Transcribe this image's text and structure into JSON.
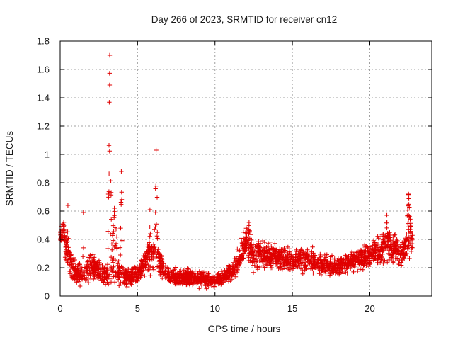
{
  "chart_data": {
    "type": "scatter",
    "title": "Day 266 of 2023, SRMTID for receiver cn12",
    "xlabel": "GPS time / hours",
    "ylabel": "SRMTID / TECUs",
    "xlim": [
      0,
      24
    ],
    "ylim": [
      0,
      1.8
    ],
    "xticks": [
      "0",
      "5",
      "10",
      "15",
      "20"
    ],
    "xtick_values": [
      0,
      5,
      10,
      15,
      20
    ],
    "yticks": [
      "0",
      "0.2",
      "0.4",
      "0.6",
      "0.8",
      "1",
      "1.2",
      "1.4",
      "1.6",
      "1.8"
    ],
    "ytick_values": [
      0,
      0.2,
      0.4,
      0.6,
      0.8,
      1.0,
      1.2,
      1.4,
      1.6,
      1.8
    ],
    "grid": true,
    "marker": "plus",
    "color": "#e00000",
    "series": [
      {
        "name": "SRMTID cn12",
        "profile": [
          {
            "x": 0.0,
            "y": 0.4,
            "spread": 0.05
          },
          {
            "x": 0.2,
            "y": 0.48,
            "spread": 0.06
          },
          {
            "x": 0.4,
            "y": 0.3,
            "spread": 0.1
          },
          {
            "x": 0.6,
            "y": 0.24,
            "spread": 0.09
          },
          {
            "x": 1.0,
            "y": 0.18,
            "spread": 0.07
          },
          {
            "x": 1.5,
            "y": 0.13,
            "spread": 0.06
          },
          {
            "x": 2.0,
            "y": 0.22,
            "spread": 0.08
          },
          {
            "x": 2.5,
            "y": 0.17,
            "spread": 0.06
          },
          {
            "x": 3.0,
            "y": 0.15,
            "spread": 0.06
          },
          {
            "x": 3.5,
            "y": 0.18,
            "spread": 0.08
          },
          {
            "x": 4.0,
            "y": 0.14,
            "spread": 0.07
          },
          {
            "x": 4.5,
            "y": 0.13,
            "spread": 0.05
          },
          {
            "x": 5.0,
            "y": 0.15,
            "spread": 0.05
          },
          {
            "x": 5.5,
            "y": 0.25,
            "spread": 0.08
          },
          {
            "x": 6.0,
            "y": 0.3,
            "spread": 0.1
          },
          {
            "x": 6.5,
            "y": 0.22,
            "spread": 0.07
          },
          {
            "x": 7.0,
            "y": 0.14,
            "spread": 0.05
          },
          {
            "x": 8.0,
            "y": 0.13,
            "spread": 0.05
          },
          {
            "x": 9.0,
            "y": 0.12,
            "spread": 0.05
          },
          {
            "x": 10.0,
            "y": 0.11,
            "spread": 0.04
          },
          {
            "x": 11.0,
            "y": 0.16,
            "spread": 0.05
          },
          {
            "x": 11.5,
            "y": 0.24,
            "spread": 0.08
          },
          {
            "x": 12.0,
            "y": 0.38,
            "spread": 0.09
          },
          {
            "x": 12.5,
            "y": 0.28,
            "spread": 0.1
          },
          {
            "x": 13.0,
            "y": 0.3,
            "spread": 0.09
          },
          {
            "x": 14.0,
            "y": 0.28,
            "spread": 0.08
          },
          {
            "x": 15.0,
            "y": 0.25,
            "spread": 0.07
          },
          {
            "x": 16.0,
            "y": 0.26,
            "spread": 0.08
          },
          {
            "x": 17.0,
            "y": 0.22,
            "spread": 0.06
          },
          {
            "x": 18.0,
            "y": 0.21,
            "spread": 0.05
          },
          {
            "x": 19.0,
            "y": 0.25,
            "spread": 0.06
          },
          {
            "x": 20.0,
            "y": 0.29,
            "spread": 0.08
          },
          {
            "x": 21.0,
            "y": 0.35,
            "spread": 0.1
          },
          {
            "x": 22.0,
            "y": 0.3,
            "spread": 0.08
          },
          {
            "x": 22.7,
            "y": 0.38,
            "spread": 0.1
          }
        ],
        "peaks": [
          {
            "x": 3.2,
            "y": 1.7,
            "width": 0.15
          },
          {
            "x": 3.5,
            "y": 0.62,
            "width": 0.35
          },
          {
            "x": 3.95,
            "y": 0.88,
            "width": 0.12
          },
          {
            "x": 6.2,
            "y": 1.03,
            "width": 0.15
          },
          {
            "x": 0.5,
            "y": 0.64,
            "width": 0.08
          },
          {
            "x": 1.5,
            "y": 0.59,
            "width": 0.06
          },
          {
            "x": 5.8,
            "y": 0.61,
            "width": 0.1
          },
          {
            "x": 12.2,
            "y": 0.52,
            "width": 0.25
          },
          {
            "x": 21.1,
            "y": 0.57,
            "width": 0.15
          },
          {
            "x": 22.5,
            "y": 0.72,
            "width": 0.25
          }
        ],
        "x_end": 22.75,
        "n_points": 2600
      }
    ]
  }
}
